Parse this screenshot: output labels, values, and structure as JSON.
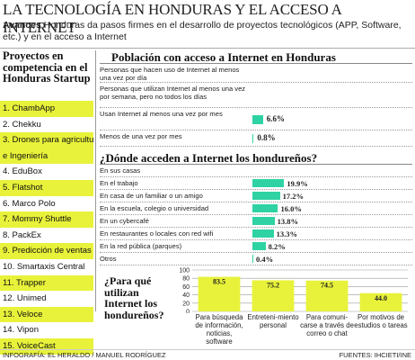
{
  "header": {
    "title": "LA TECNOLOGÍA EN HONDURAS Y EL ACCESO A INTERNET",
    "lead_bold": "Avances",
    "lead_text": " Honduras da pasos firmes en el desarrollo de proyectos tecnológicos (APP, Software, etc.) y en el acceso a Internet"
  },
  "startups": {
    "title": "Proyectos en competencia en el Honduras Startup",
    "items": [
      {
        "label": "1. ChambApp",
        "highlight": true
      },
      {
        "label": "2. Chekku",
        "highlight": false
      },
      {
        "label": "3. Drones para agricultura",
        "highlight": true
      },
      {
        "label": "e Ingeniería",
        "highlight": true
      },
      {
        "label": "4. EduBox",
        "highlight": false
      },
      {
        "label": "5. Flatshot",
        "highlight": true
      },
      {
        "label": "6. Marco Polo",
        "highlight": false
      },
      {
        "label": "7. Mommy Shuttle",
        "highlight": true
      },
      {
        "label": "8. PackEx",
        "highlight": false
      },
      {
        "label": "9. Predicción de ventas",
        "highlight": true
      },
      {
        "label": "10. Smartaxis Central",
        "highlight": false
      },
      {
        "label": "11. Trapper",
        "highlight": true
      },
      {
        "label": "12. Unimed",
        "highlight": false
      },
      {
        "label": "13. Veloce",
        "highlight": true
      },
      {
        "label": "14. Vipon",
        "highlight": false
      },
      {
        "label": "15. VoiceCast",
        "highlight": true
      }
    ]
  },
  "chart_data": [
    {
      "type": "bar",
      "title": "Población con acceso a Internet en Honduras",
      "categories": [
        "Personas que hacen uso de Internet al menos una vez por día",
        "Personas que utilizan Internet al menos una vez por semana, pero no todos los días",
        "Usan Internet al menos una vez por mes",
        "Menos de una vez por mes"
      ],
      "values": [
        null,
        null,
        6.6,
        0.8
      ],
      "value_labels": [
        "",
        "",
        "6.6%",
        "0.8%"
      ],
      "xlim": [
        0,
        100
      ]
    },
    {
      "type": "bar",
      "title": "¿Dónde acceden a Internet los hondureños?",
      "categories": [
        "En sus casas",
        "En el trabajo",
        "En casa de un familiar o un amigo",
        "En la escuela, colegio o universidad",
        "En un cybercafé",
        "En restaurantes o locales con red wifi",
        "En la red pública (parques)",
        "Otros"
      ],
      "values": [
        null,
        19.9,
        17.2,
        16.0,
        13.8,
        13.3,
        8.2,
        0.4
      ],
      "value_labels": [
        "",
        "19.9%",
        "17.2%",
        "16.0%",
        "13.8%",
        "13.3%",
        "8.2%",
        "0.4%"
      ],
      "xlim": [
        0,
        100
      ]
    },
    {
      "type": "bar",
      "title": "¿Para qué utilizan Internet los hondureños?",
      "categories": [
        "Para búsqueda de información, noticias, software",
        "Entreteni-miento personal",
        "Para comuni-carse a través de correo o chat",
        "Por motivos de estudios o tareas"
      ],
      "values": [
        83.5,
        75.2,
        74.5,
        44.0
      ],
      "value_labels": [
        "83.5",
        "75.2",
        "74.5",
        "44.0"
      ],
      "ylim": [
        0,
        100
      ],
      "yticks": [
        "100",
        "80",
        "60",
        "40",
        "20",
        "0"
      ],
      "grid": true
    }
  ],
  "footer": {
    "left": "INFOGRAFÍA: EL HERALDO / MANUEL RODRÍGUEZ",
    "right": "FUENTES: IHCIETI/INE"
  },
  "colors": {
    "bar_teal": "#2fd3a3",
    "bar_yellow": "#e8f23a",
    "highlight": "#e8f23a"
  }
}
